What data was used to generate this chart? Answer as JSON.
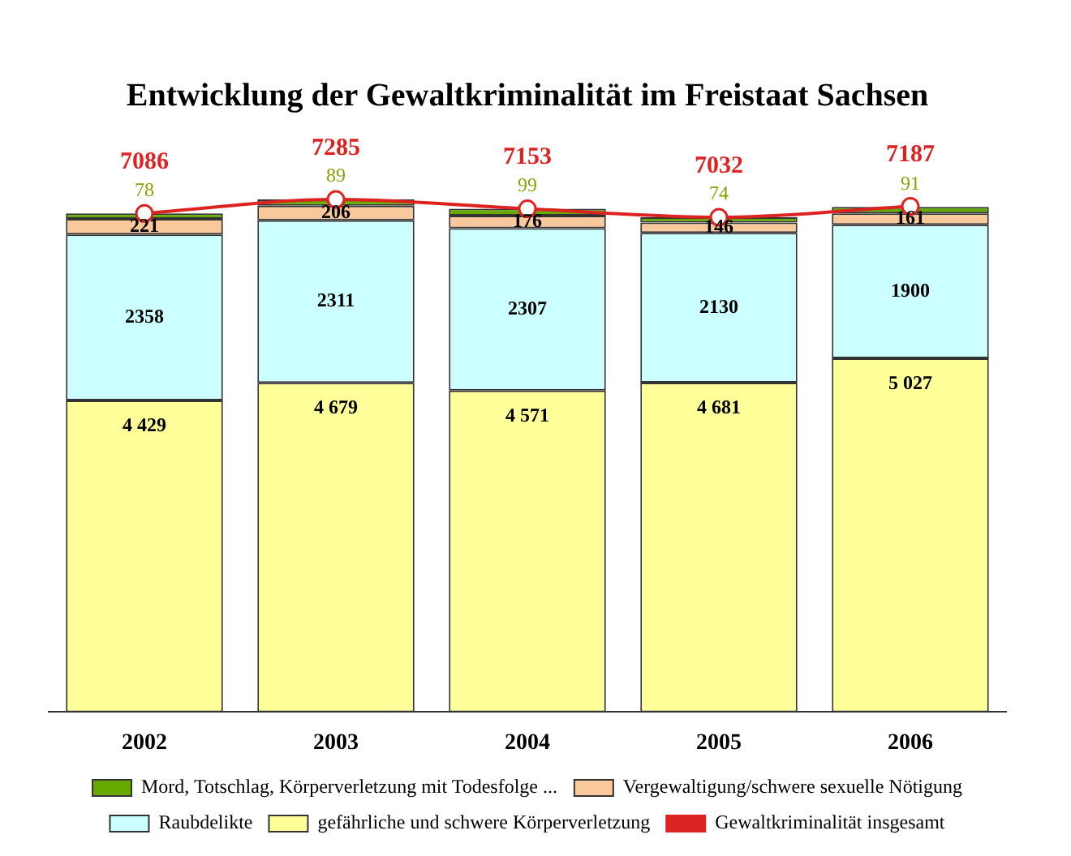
{
  "chart_data": {
    "type": "bar",
    "title": "Entwicklung der Gewaltkriminalität im Freistaat Sachsen",
    "categories": [
      "2002",
      "2003",
      "2004",
      "2005",
      "2006"
    ],
    "stacked": true,
    "legend": "bottom",
    "tick_labels": "x",
    "series": [
      {
        "name": "gefährliche und schwere Körperverletzung",
        "color": "#ffff99",
        "values": [
          4429,
          4679,
          4571,
          4681,
          5027
        ],
        "value_labels": [
          "4 429",
          "4 679",
          "4 571",
          "4 681",
          "5 027"
        ]
      },
      {
        "name": "Raubdelikte",
        "color": "#ccffff",
        "values": [
          2358,
          2311,
          2307,
          2130,
          1900
        ],
        "value_labels": [
          "2358",
          "2311",
          "2307",
          "2130",
          "1900"
        ]
      },
      {
        "name": "Vergewaltigung/schwere sexuelle Nötigung",
        "color": "#f9c89b",
        "values": [
          221,
          206,
          176,
          146,
          161
        ],
        "value_labels": [
          "221",
          "206",
          "176",
          "146",
          "161"
        ]
      },
      {
        "name": "Mord, Totschlag, Körperverletzung mit Todesfolge ...",
        "color": "#66aa00",
        "values": [
          78,
          89,
          99,
          74,
          91
        ],
        "value_labels": [
          "78",
          "89",
          "99",
          "74",
          "91"
        ]
      },
      {
        "name": "Gewaltkriminalität insgesamt",
        "type": "line",
        "color": "#dd2222",
        "marker": "circle",
        "values": [
          7086,
          7285,
          7153,
          7032,
          7187
        ],
        "value_labels": [
          "7086",
          "7285",
          "7153",
          "7032",
          "7187"
        ]
      }
    ]
  }
}
